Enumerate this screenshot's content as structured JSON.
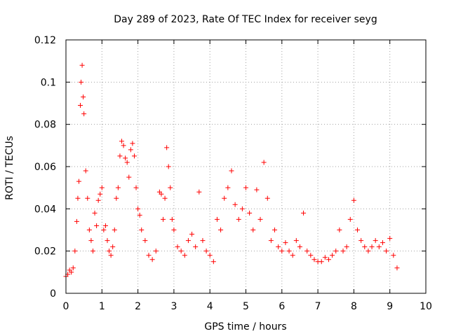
{
  "chart_data": {
    "type": "scatter",
    "title": "Day 289 of 2023, Rate Of TEC Index for receiver seyg",
    "xlabel": "GPS time / hours",
    "ylabel": "ROTI / TECUs",
    "xlim": [
      0,
      10
    ],
    "ylim": [
      0,
      0.12
    ],
    "x_ticks": [
      0,
      1,
      2,
      3,
      4,
      5,
      6,
      7,
      8,
      9,
      10
    ],
    "x_tick_labels": [
      "0",
      "1",
      "2",
      "3",
      "4",
      "5",
      "6",
      "7",
      "8",
      "9",
      "10"
    ],
    "y_ticks": [
      0,
      0.02,
      0.04,
      0.06,
      0.08,
      0.1,
      0.12
    ],
    "y_tick_labels": [
      "0",
      "0.02",
      "0.04",
      "0.06",
      "0.08",
      "0.1",
      "0.12"
    ],
    "grid": true,
    "legend": "none",
    "marker": "plus",
    "color": "#ff0000",
    "x": [
      0.0,
      0.05,
      0.1,
      0.15,
      0.2,
      0.25,
      0.3,
      0.33,
      0.36,
      0.4,
      0.42,
      0.45,
      0.48,
      0.5,
      0.55,
      0.6,
      0.65,
      0.7,
      0.75,
      0.8,
      0.85,
      0.9,
      0.95,
      1.0,
      1.05,
      1.1,
      1.15,
      1.2,
      1.25,
      1.3,
      1.35,
      1.4,
      1.45,
      1.5,
      1.55,
      1.6,
      1.65,
      1.7,
      1.75,
      1.8,
      1.85,
      1.9,
      1.95,
      2.0,
      2.05,
      2.1,
      2.2,
      2.3,
      2.4,
      2.5,
      2.6,
      2.65,
      2.7,
      2.75,
      2.8,
      2.85,
      2.9,
      2.95,
      3.0,
      3.1,
      3.2,
      3.3,
      3.4,
      3.5,
      3.6,
      3.7,
      3.8,
      3.9,
      4.0,
      4.1,
      4.2,
      4.3,
      4.4,
      4.5,
      4.6,
      4.7,
      4.8,
      4.9,
      5.0,
      5.1,
      5.2,
      5.3,
      5.4,
      5.5,
      5.6,
      5.7,
      5.8,
      5.9,
      6.0,
      6.1,
      6.2,
      6.3,
      6.4,
      6.5,
      6.6,
      6.7,
      6.8,
      6.9,
      7.0,
      7.1,
      7.2,
      7.3,
      7.4,
      7.5,
      7.6,
      7.7,
      7.8,
      7.9,
      8.0,
      8.1,
      8.2,
      8.3,
      8.4,
      8.5,
      8.6,
      8.7,
      8.8,
      8.9,
      9.0,
      9.1,
      9.2
    ],
    "y": [
      0.008,
      0.009,
      0.011,
      0.01,
      0.012,
      0.02,
      0.034,
      0.045,
      0.053,
      0.089,
      0.1,
      0.108,
      0.093,
      0.085,
      0.058,
      0.045,
      0.03,
      0.025,
      0.02,
      0.038,
      0.032,
      0.044,
      0.047,
      0.05,
      0.03,
      0.032,
      0.025,
      0.02,
      0.018,
      0.022,
      0.03,
      0.045,
      0.05,
      0.065,
      0.072,
      0.07,
      0.064,
      0.062,
      0.055,
      0.068,
      0.071,
      0.065,
      0.05,
      0.04,
      0.037,
      0.03,
      0.025,
      0.018,
      0.016,
      0.02,
      0.048,
      0.047,
      0.035,
      0.045,
      0.069,
      0.06,
      0.05,
      0.035,
      0.03,
      0.022,
      0.02,
      0.018,
      0.025,
      0.028,
      0.022,
      0.048,
      0.025,
      0.02,
      0.018,
      0.015,
      0.035,
      0.03,
      0.045,
      0.05,
      0.058,
      0.042,
      0.035,
      0.04,
      0.05,
      0.038,
      0.03,
      0.049,
      0.035,
      0.062,
      0.045,
      0.025,
      0.03,
      0.022,
      0.02,
      0.024,
      0.02,
      0.018,
      0.025,
      0.022,
      0.038,
      0.02,
      0.018,
      0.016,
      0.015,
      0.015,
      0.017,
      0.016,
      0.018,
      0.02,
      0.03,
      0.02,
      0.022,
      0.035,
      0.044,
      0.03,
      0.025,
      0.022,
      0.02,
      0.022,
      0.025,
      0.022,
      0.024,
      0.02,
      0.026,
      0.018,
      0.012
    ]
  }
}
